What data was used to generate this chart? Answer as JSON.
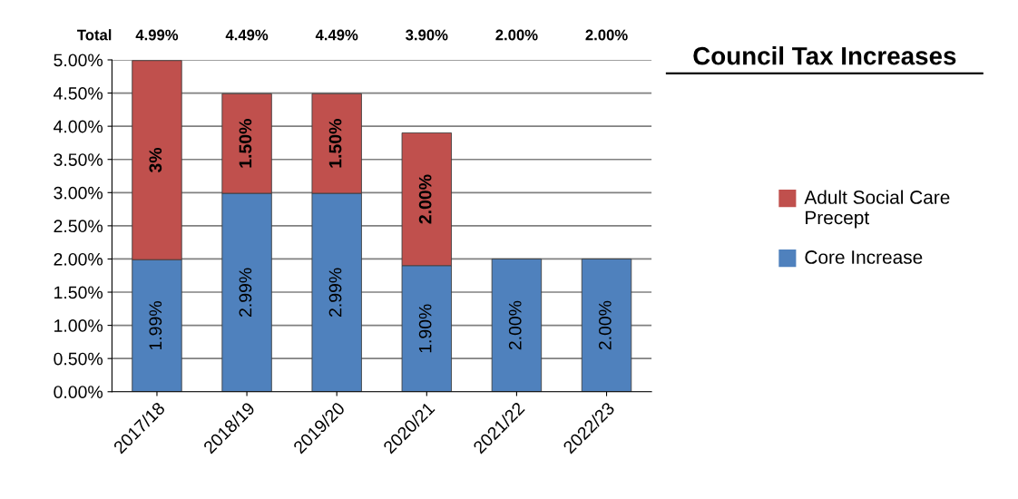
{
  "chart_data": {
    "type": "bar",
    "stacked": true,
    "title": "Council Tax Increases",
    "categories": [
      "2017/18",
      "2018/19",
      "2019/20",
      "2020/21",
      "2021/22",
      "2022/23"
    ],
    "series": [
      {
        "name": "Core Increase",
        "color": "#4f81bd",
        "values": [
          1.99,
          2.99,
          2.99,
          1.9,
          2.0,
          2.0
        ],
        "value_labels": [
          "1.99%",
          "2.99%",
          "2.99%",
          "1.90%",
          "2.00%",
          "2.00%"
        ]
      },
      {
        "name": "Adult Social Care Precept",
        "color": "#c0504d",
        "values": [
          3,
          1.5,
          1.5,
          2.0,
          null,
          null
        ],
        "value_labels": [
          "3%",
          "1.50%",
          "1.50%",
          "2.00%",
          null,
          null
        ]
      }
    ],
    "annotations": [
      "Total",
      "4.99%",
      "4.49%",
      "4.49%",
      "3.90%",
      "2.00%",
      "2.00%"
    ],
    "ylim": [
      0,
      5
    ],
    "yticks": [
      {
        "value": 0,
        "label": "0.00%"
      },
      {
        "value": 0.5,
        "label": "0.50%"
      },
      {
        "value": 1,
        "label": "1.00%"
      },
      {
        "value": 1.5,
        "label": "1.50%"
      },
      {
        "value": 2,
        "label": "2.00%"
      },
      {
        "value": 2.5,
        "label": "2.50%"
      },
      {
        "value": 3,
        "label": "3.00%"
      },
      {
        "value": 3.5,
        "label": "3.50%"
      },
      {
        "value": 4,
        "label": "4.00%"
      },
      {
        "value": 4.5,
        "label": "4.50%"
      },
      {
        "value": 5,
        "label": "5.00%"
      }
    ],
    "grid": "y",
    "legend": "right"
  }
}
